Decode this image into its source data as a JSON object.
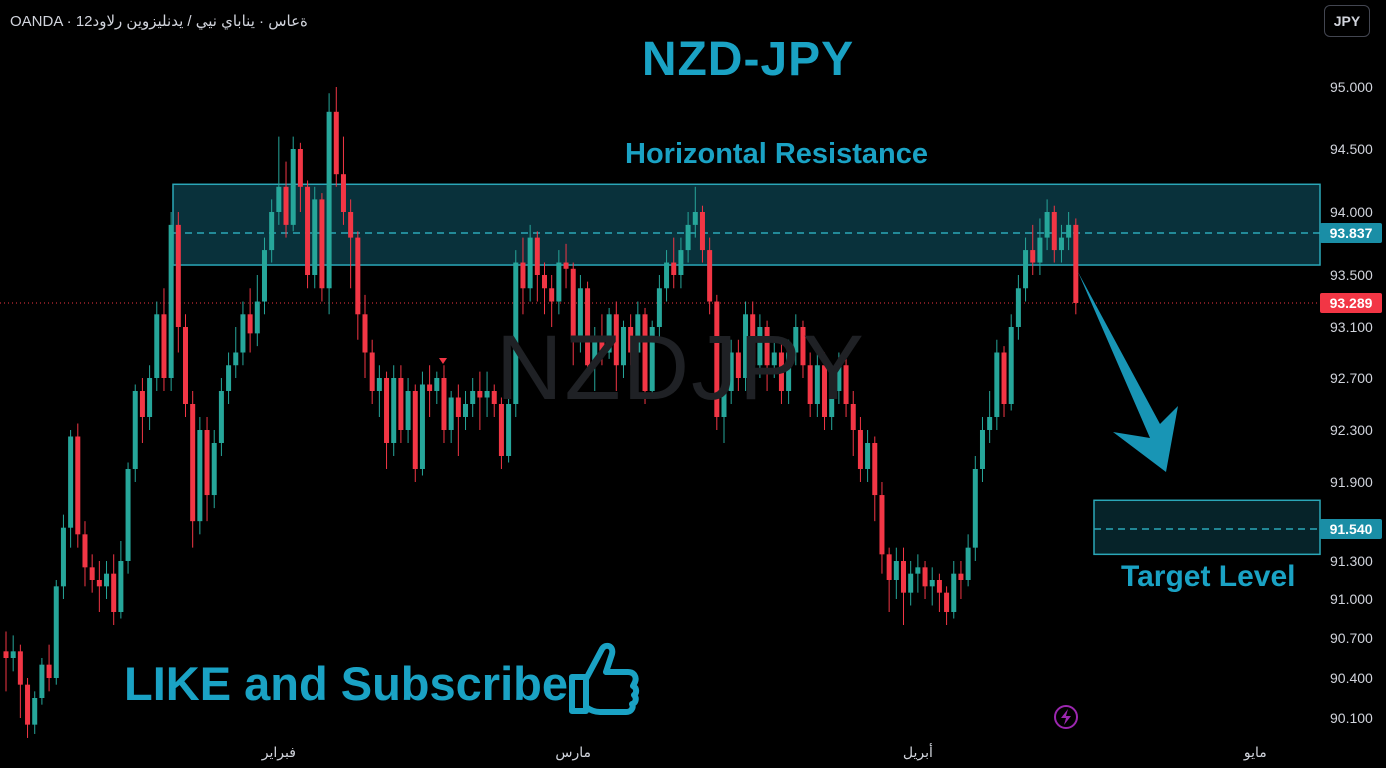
{
  "header": {
    "symbol_line": "OANDA · 12ةعاس · يناباي نيي / يدنليزوين رلاود",
    "currency_button": "JPY"
  },
  "title": "NZD-JPY",
  "watermark": "NZDJPY",
  "annotations": {
    "resistance_label": "Horizontal Resistance",
    "target_label": "Target Level",
    "cta": "LIKE and Subscribe"
  },
  "price_tags": {
    "resistance": "93.837",
    "current": "93.289",
    "target": "91.540"
  },
  "colors": {
    "up": "#26a69a",
    "down": "#f23645",
    "accent": "#1aa2c4",
    "zone_fill": "#0a3a45",
    "zone_border": "#2aa7b8"
  },
  "chart_data": {
    "type": "candlestick",
    "title": "NZD-JPY",
    "y_ticks": [
      "95.000",
      "94.500",
      "94.000",
      "93.500",
      "93.100",
      "92.700",
      "92.300",
      "91.900",
      "91.300",
      "91.000",
      "90.700",
      "90.400",
      "90.100"
    ],
    "x_ticks": [
      {
        "label": "فبراير",
        "index": 38
      },
      {
        "label": "مارس",
        "index": 79
      },
      {
        "label": "أبريل",
        "index": 127
      },
      {
        "label": "مايو",
        "index": 174
      }
    ],
    "resistance_zone": {
      "top": 94.22,
      "bottom": 93.58,
      "mid": 93.837
    },
    "target_zone": {
      "top": 91.76,
      "bottom": 91.35,
      "mid": 91.54
    },
    "last_price": 93.289,
    "candles": [
      [
        90.6,
        90.55,
        90.75,
        90.3
      ],
      [
        90.55,
        90.6,
        90.72,
        90.45
      ],
      [
        90.6,
        90.35,
        90.65,
        90.1
      ],
      [
        90.35,
        90.05,
        90.4,
        89.95
      ],
      [
        90.05,
        90.25,
        90.3,
        89.98
      ],
      [
        90.25,
        90.5,
        90.55,
        90.2
      ],
      [
        90.5,
        90.4,
        90.65,
        90.3
      ],
      [
        90.4,
        91.1,
        91.15,
        90.35
      ],
      [
        91.1,
        91.55,
        91.65,
        91.0
      ],
      [
        91.55,
        92.25,
        92.3,
        91.4
      ],
      [
        92.25,
        91.5,
        92.35,
        91.4
      ],
      [
        91.5,
        91.25,
        91.6,
        91.1
      ],
      [
        91.25,
        91.15,
        91.35,
        91.05
      ],
      [
        91.15,
        91.1,
        91.3,
        90.9
      ],
      [
        91.1,
        91.2,
        91.3,
        91.0
      ],
      [
        91.2,
        90.9,
        91.35,
        90.8
      ],
      [
        90.9,
        91.3,
        91.45,
        90.85
      ],
      [
        91.3,
        92.0,
        92.05,
        91.2
      ],
      [
        92.0,
        92.6,
        92.65,
        91.9
      ],
      [
        92.6,
        92.4,
        92.7,
        92.2
      ],
      [
        92.4,
        92.7,
        92.8,
        92.3
      ],
      [
        92.7,
        93.2,
        93.3,
        92.6
      ],
      [
        93.2,
        92.7,
        93.4,
        92.6
      ],
      [
        92.7,
        93.9,
        94.0,
        92.6
      ],
      [
        93.9,
        93.1,
        94.0,
        92.9
      ],
      [
        93.1,
        92.5,
        93.2,
        92.4
      ],
      [
        92.5,
        91.6,
        92.6,
        91.4
      ],
      [
        91.6,
        92.3,
        92.4,
        91.5
      ],
      [
        92.3,
        91.8,
        92.4,
        91.6
      ],
      [
        91.8,
        92.2,
        92.3,
        91.7
      ],
      [
        92.2,
        92.6,
        92.7,
        92.1
      ],
      [
        92.6,
        92.8,
        92.9,
        92.5
      ],
      [
        92.8,
        92.9,
        93.1,
        92.7
      ],
      [
        92.9,
        93.2,
        93.3,
        92.8
      ],
      [
        93.2,
        93.05,
        93.4,
        92.9
      ],
      [
        93.05,
        93.3,
        93.5,
        92.95
      ],
      [
        93.3,
        93.7,
        93.8,
        93.2
      ],
      [
        93.7,
        94.0,
        94.1,
        93.6
      ],
      [
        94.0,
        94.2,
        94.6,
        93.9
      ],
      [
        94.2,
        93.9,
        94.4,
        93.8
      ],
      [
        93.9,
        94.5,
        94.6,
        93.85
      ],
      [
        94.5,
        94.2,
        94.55,
        94.0
      ],
      [
        94.2,
        93.5,
        94.25,
        93.4
      ],
      [
        93.5,
        94.1,
        94.2,
        93.4
      ],
      [
        94.1,
        93.4,
        94.15,
        93.3
      ],
      [
        93.4,
        94.8,
        94.95,
        93.2
      ],
      [
        94.8,
        94.3,
        95.0,
        94.2
      ],
      [
        94.3,
        94.0,
        94.6,
        93.9
      ],
      [
        94.0,
        93.8,
        94.1,
        93.4
      ],
      [
        93.8,
        93.2,
        93.85,
        93.0
      ],
      [
        93.2,
        92.9,
        93.35,
        92.7
      ],
      [
        92.9,
        92.6,
        93.0,
        92.5
      ],
      [
        92.6,
        92.7,
        92.8,
        92.4
      ],
      [
        92.7,
        92.2,
        92.75,
        92.0
      ],
      [
        92.2,
        92.7,
        92.8,
        92.1
      ],
      [
        92.7,
        92.3,
        92.8,
        92.2
      ],
      [
        92.3,
        92.6,
        92.7,
        92.2
      ],
      [
        92.6,
        92.0,
        92.65,
        91.9
      ],
      [
        92.0,
        92.65,
        92.75,
        91.95
      ],
      [
        92.65,
        92.6,
        92.8,
        92.4
      ],
      [
        92.6,
        92.7,
        92.75,
        92.5
      ],
      [
        92.7,
        92.3,
        92.8,
        92.2
      ],
      [
        92.3,
        92.55,
        92.6,
        92.2
      ],
      [
        92.55,
        92.4,
        92.65,
        92.1
      ],
      [
        92.4,
        92.5,
        92.6,
        92.3
      ],
      [
        92.5,
        92.6,
        92.7,
        92.4
      ],
      [
        92.6,
        92.55,
        92.75,
        92.3
      ],
      [
        92.55,
        92.6,
        92.75,
        92.4
      ],
      [
        92.6,
        92.5,
        92.65,
        92.4
      ],
      [
        92.5,
        92.1,
        92.55,
        92.0
      ],
      [
        92.1,
        92.5,
        92.6,
        92.05
      ],
      [
        92.5,
        93.6,
        93.7,
        92.4
      ],
      [
        93.6,
        93.4,
        93.8,
        93.2
      ],
      [
        93.4,
        93.8,
        93.9,
        93.3
      ],
      [
        93.8,
        93.5,
        93.85,
        93.3
      ],
      [
        93.5,
        93.4,
        93.6,
        93.2
      ],
      [
        93.4,
        93.3,
        93.5,
        93.1
      ],
      [
        93.3,
        93.6,
        93.7,
        93.2
      ],
      [
        93.6,
        93.55,
        93.75,
        93.4
      ],
      [
        93.55,
        93.0,
        93.6,
        92.8
      ],
      [
        93.0,
        93.4,
        93.5,
        92.9
      ],
      [
        93.4,
        92.8,
        93.45,
        92.7
      ],
      [
        92.8,
        93.0,
        93.1,
        92.6
      ],
      [
        93.0,
        92.9,
        93.2,
        92.8
      ],
      [
        92.9,
        93.2,
        93.25,
        92.85
      ],
      [
        93.2,
        92.8,
        93.3,
        92.6
      ],
      [
        92.8,
        93.1,
        93.15,
        92.7
      ],
      [
        93.1,
        92.9,
        93.2,
        92.8
      ],
      [
        92.9,
        93.2,
        93.3,
        92.8
      ],
      [
        93.2,
        92.6,
        93.25,
        92.5
      ],
      [
        92.6,
        93.1,
        93.15,
        92.55
      ],
      [
        93.1,
        93.4,
        93.5,
        93.0
      ],
      [
        93.4,
        93.6,
        93.7,
        93.3
      ],
      [
        93.6,
        93.5,
        93.8,
        93.4
      ],
      [
        93.5,
        93.7,
        93.8,
        93.4
      ],
      [
        93.7,
        93.9,
        94.0,
        93.6
      ],
      [
        93.9,
        94.0,
        94.2,
        93.8
      ],
      [
        94.0,
        93.7,
        94.05,
        93.6
      ],
      [
        93.7,
        93.3,
        93.8,
        93.2
      ],
      [
        93.3,
        92.4,
        93.35,
        92.3
      ],
      [
        92.4,
        92.6,
        92.7,
        92.2
      ],
      [
        92.6,
        92.9,
        93.0,
        92.5
      ],
      [
        92.9,
        92.7,
        93.0,
        92.6
      ],
      [
        92.7,
        93.2,
        93.3,
        92.6
      ],
      [
        93.2,
        92.8,
        93.3,
        92.7
      ],
      [
        92.8,
        93.1,
        93.2,
        92.7
      ],
      [
        93.1,
        92.8,
        93.15,
        92.6
      ],
      [
        92.8,
        92.9,
        93.0,
        92.7
      ],
      [
        92.9,
        92.6,
        93.0,
        92.5
      ],
      [
        92.6,
        92.9,
        93.0,
        92.5
      ],
      [
        92.9,
        93.1,
        93.2,
        92.8
      ],
      [
        93.1,
        92.8,
        93.15,
        92.7
      ],
      [
        92.8,
        92.5,
        92.9,
        92.4
      ],
      [
        92.5,
        92.8,
        92.9,
        92.4
      ],
      [
        92.8,
        92.4,
        92.9,
        92.3
      ],
      [
        92.4,
        92.6,
        92.7,
        92.3
      ],
      [
        92.6,
        92.8,
        92.9,
        92.5
      ],
      [
        92.8,
        92.5,
        92.85,
        92.4
      ],
      [
        92.5,
        92.3,
        92.6,
        92.1
      ],
      [
        92.3,
        92.0,
        92.4,
        91.9
      ],
      [
        92.0,
        92.2,
        92.3,
        91.9
      ],
      [
        92.2,
        91.8,
        92.25,
        91.6
      ],
      [
        91.8,
        91.35,
        91.9,
        91.2
      ],
      [
        91.35,
        91.15,
        91.4,
        90.9
      ],
      [
        91.15,
        91.3,
        91.4,
        91.0
      ],
      [
        91.3,
        91.05,
        91.4,
        90.8
      ],
      [
        91.05,
        91.2,
        91.3,
        90.95
      ],
      [
        91.2,
        91.25,
        91.35,
        91.05
      ],
      [
        91.25,
        91.1,
        91.3,
        91.0
      ],
      [
        91.1,
        91.15,
        91.25,
        90.95
      ],
      [
        91.15,
        91.05,
        91.2,
        90.9
      ],
      [
        91.05,
        90.9,
        91.1,
        90.8
      ],
      [
        90.9,
        91.2,
        91.3,
        90.85
      ],
      [
        91.2,
        91.15,
        91.3,
        91.0
      ],
      [
        91.15,
        91.4,
        91.5,
        91.1
      ],
      [
        91.4,
        92.0,
        92.1,
        91.3
      ],
      [
        92.0,
        92.3,
        92.4,
        91.9
      ],
      [
        92.3,
        92.4,
        92.6,
        92.2
      ],
      [
        92.4,
        92.9,
        93.0,
        92.3
      ],
      [
        92.9,
        92.5,
        92.95,
        92.4
      ],
      [
        92.5,
        93.1,
        93.2,
        92.45
      ],
      [
        93.1,
        93.4,
        93.5,
        93.0
      ],
      [
        93.4,
        93.7,
        93.8,
        93.3
      ],
      [
        93.7,
        93.6,
        93.9,
        93.5
      ],
      [
        93.6,
        93.8,
        93.95,
        93.5
      ],
      [
        93.8,
        94.0,
        94.1,
        93.7
      ],
      [
        94.0,
        93.7,
        94.05,
        93.6
      ],
      [
        93.7,
        93.8,
        93.9,
        93.6
      ],
      [
        93.8,
        93.9,
        94.0,
        93.7
      ],
      [
        93.9,
        93.289,
        93.95,
        93.2
      ]
    ]
  }
}
